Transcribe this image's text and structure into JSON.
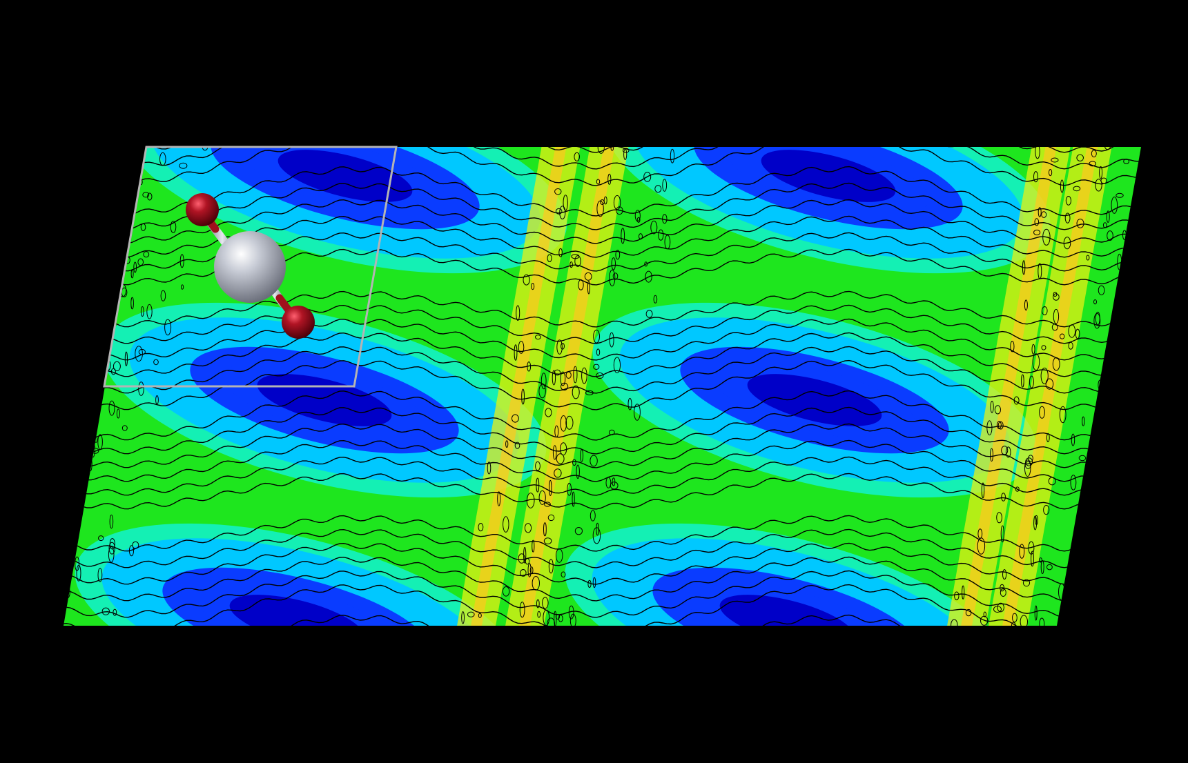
{
  "viewer": {
    "background_color": "#000000",
    "map": {
      "colormap": [
        "#0000c8",
        "#0a3cff",
        "#00c8ff",
        "#14f0b4",
        "#1ee61e",
        "#8cf000",
        "#e6f014",
        "#ffc81e",
        "#ff8c32"
      ],
      "contour_line_color": "#000000",
      "tiling": [
        2,
        2
      ]
    },
    "unit_cell": {
      "outline_color": "#b4b4b4"
    },
    "molecule": {
      "atoms": [
        {
          "element": "O",
          "color": "#a0101c"
        },
        {
          "element": "central-atom",
          "color": "#b8bcc8"
        },
        {
          "element": "O",
          "color": "#a0101c"
        }
      ],
      "bond_colors": [
        "#b8bcc8",
        "#a0101c"
      ]
    }
  }
}
